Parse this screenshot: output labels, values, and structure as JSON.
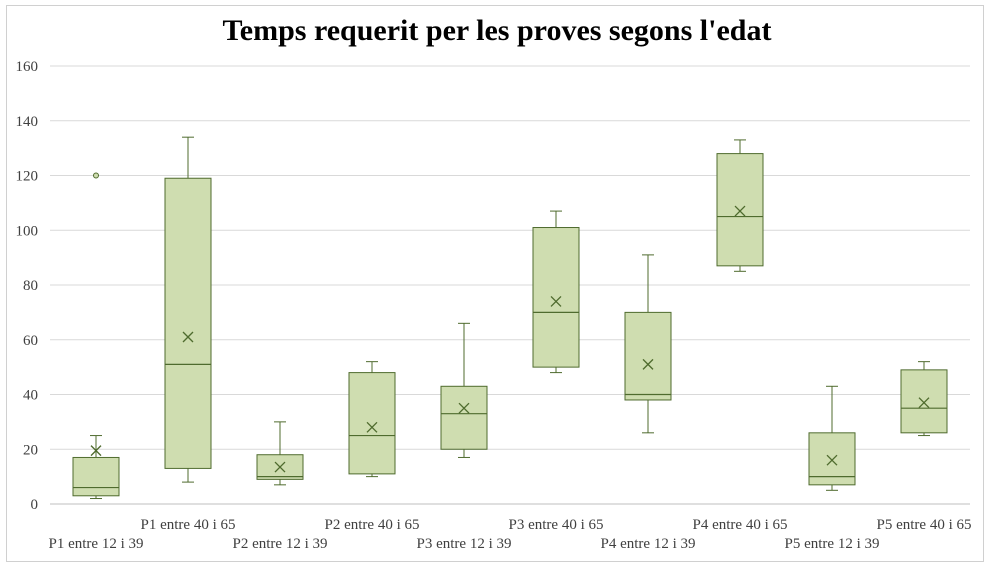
{
  "chart_data": {
    "type": "box",
    "title": "Temps requerit per les proves segons l'edat",
    "xlabel": "",
    "ylabel": "",
    "ylim": [
      0,
      160
    ],
    "yticks": [
      "0",
      "20",
      "40",
      "60",
      "80",
      "100",
      "120",
      "140",
      "160"
    ],
    "grid": true,
    "colors": {
      "box_fill": "#cfddb0",
      "stroke": "#4f6b2e",
      "grid": "#d9d9d9"
    },
    "categories": [
      "P1 entre 12 i 39",
      "P1 entre 40 i 65",
      "P2 entre 12 i 39",
      "P2 entre 40 i 65",
      "P3 entre 12 i 39",
      "P3 entre 40 i 65",
      "P4 entre 12 i 39",
      "P4 entre 40 i 65",
      "P5 entre 12 i 39",
      "P5 entre 40 i 65"
    ],
    "boxes": [
      {
        "min": 2,
        "q1": 3,
        "median": 6,
        "q3": 17,
        "max": 25,
        "mean": 19.5,
        "outliers": [
          120
        ]
      },
      {
        "min": 8,
        "q1": 13,
        "median": 51,
        "q3": 119,
        "max": 134,
        "mean": 61,
        "outliers": []
      },
      {
        "min": 7,
        "q1": 9,
        "median": 10,
        "q3": 18,
        "max": 30,
        "mean": 13.5,
        "outliers": []
      },
      {
        "min": 10,
        "q1": 11,
        "median": 25,
        "q3": 48,
        "max": 52,
        "mean": 28,
        "outliers": []
      },
      {
        "min": 17,
        "q1": 20,
        "median": 33,
        "q3": 43,
        "max": 66,
        "mean": 35,
        "outliers": []
      },
      {
        "min": 48,
        "q1": 50,
        "median": 70,
        "q3": 101,
        "max": 107,
        "mean": 74,
        "outliers": []
      },
      {
        "min": 26,
        "q1": 38,
        "median": 40,
        "q3": 70,
        "max": 91,
        "mean": 51,
        "outliers": []
      },
      {
        "min": 85,
        "q1": 87,
        "median": 105,
        "q3": 128,
        "max": 133,
        "mean": 107,
        "outliers": []
      },
      {
        "min": 5,
        "q1": 7,
        "median": 10,
        "q3": 26,
        "max": 43,
        "mean": 16,
        "outliers": []
      },
      {
        "min": 25,
        "q1": 26,
        "median": 35,
        "q3": 49,
        "max": 52,
        "mean": 37,
        "outliers": []
      }
    ]
  }
}
